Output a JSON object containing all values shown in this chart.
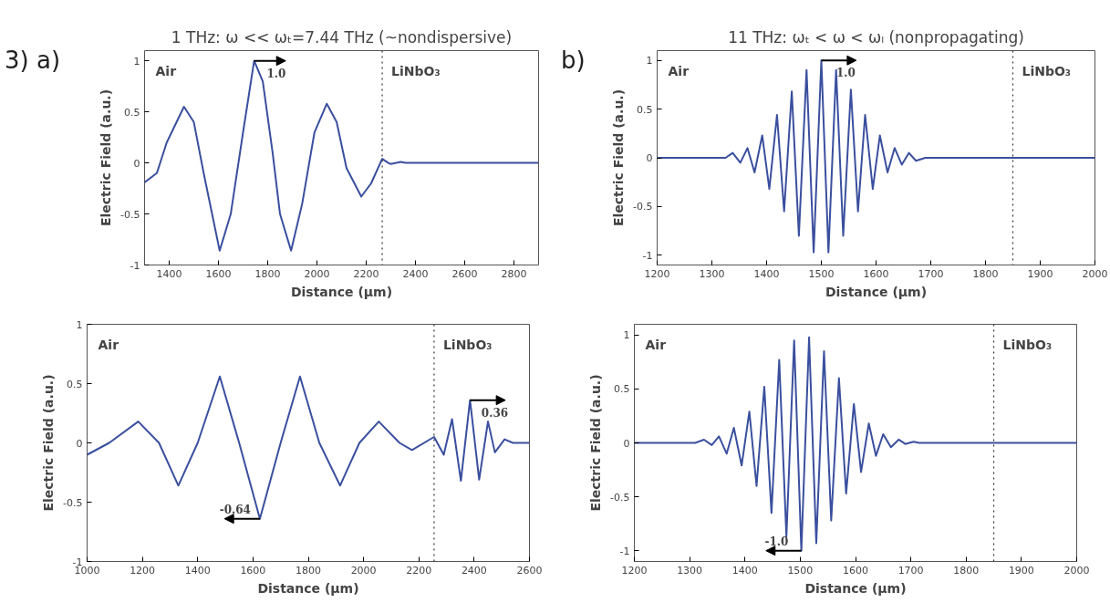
{
  "chart_data": [
    {
      "type": "line",
      "title": "1 THz: ω << ωₜ=7.44 THz (~nondispersive)",
      "xlabel": "Distance (μm)",
      "ylabel": "Electric Field (a.u.)",
      "xlim": [
        1300,
        2900
      ],
      "ylim": [
        -1,
        1.1
      ],
      "xticks": [
        1400,
        1600,
        1800,
        2000,
        2200,
        2400,
        2600,
        2800
      ],
      "yticks": [
        -1,
        -0.5,
        0,
        0.5,
        1
      ],
      "grid": false,
      "line_style": "solid",
      "series": [
        {
          "color": "#3a4f9e",
          "x": [
            1300,
            1350,
            1390,
            1460,
            1500,
            1540,
            1605,
            1650,
            1700,
            1745,
            1780,
            1820,
            1850,
            1895,
            1940,
            1990,
            2040,
            2080,
            2120,
            2180,
            2220,
            2265,
            2290,
            2300,
            2340,
            2360,
            2900
          ],
          "values": [
            -0.19,
            -0.1,
            0.2,
            0.55,
            0.4,
            -0.1,
            -0.86,
            -0.5,
            0.3,
            1.0,
            0.8,
            0.1,
            -0.5,
            -0.86,
            -0.4,
            0.3,
            0.58,
            0.4,
            -0.05,
            -0.33,
            -0.2,
            0.04,
            0.0,
            -0.01,
            0.01,
            0,
            0
          ]
        }
      ],
      "ref_lines": [
        {
          "axis": "x",
          "value": 2265,
          "color": "#333333",
          "line_style": "dotted"
        }
      ],
      "annotations": [
        "Air",
        "LiNbO₃",
        "3) a)",
        {
          "text": "1.0",
          "x": 1745,
          "y": 1.0
        }
      ]
    },
    {
      "type": "line",
      "title": "11 THz: ωₜ < ω < ωₗ (nonpropagating)",
      "xlabel": "Distance (μm)",
      "ylabel": "Electric Field (a.u.)",
      "xlim": [
        1200,
        2000
      ],
      "ylim": [
        -1.1,
        1.1
      ],
      "xticks": [
        1200,
        1300,
        1400,
        1500,
        1600,
        1700,
        1800,
        1900,
        2000
      ],
      "yticks": [
        -1,
        -0.5,
        0,
        0.5,
        1
      ],
      "grid": false,
      "line_style": "solid",
      "series": [
        {
          "color": "#3a4f9e",
          "x": [
            1200,
            1325,
            1338,
            1352,
            1365,
            1378,
            1392,
            1405,
            1419,
            1432,
            1446,
            1459,
            1473,
            1486,
            1500,
            1513,
            1527,
            1540,
            1554,
            1567,
            1580,
            1594,
            1607,
            1621,
            1634,
            1647,
            1660,
            1673,
            1690,
            2000
          ],
          "values": [
            0,
            0,
            0.05,
            -0.05,
            0.1,
            -0.15,
            0.23,
            -0.32,
            0.44,
            -0.55,
            0.68,
            -0.8,
            0.9,
            -0.97,
            1.0,
            -0.97,
            0.9,
            -0.8,
            0.7,
            -0.55,
            0.44,
            -0.32,
            0.23,
            -0.15,
            0.1,
            -0.07,
            0.05,
            -0.03,
            0,
            0
          ]
        }
      ],
      "ref_lines": [
        {
          "axis": "x",
          "value": 1850,
          "color": "#333333",
          "line_style": "dotted"
        }
      ],
      "annotations": [
        "Air",
        "LiNbO₃",
        "b)",
        {
          "text": "1.0",
          "x": 1500,
          "y": 1.0
        }
      ]
    },
    {
      "type": "line",
      "xlabel": "Distance (μm)",
      "ylabel": "Electric Field (a.u.)",
      "xlim": [
        1000,
        2600
      ],
      "ylim": [
        -1,
        1
      ],
      "xticks": [
        1000,
        1200,
        1400,
        1600,
        1800,
        2000,
        2200,
        2400,
        2600
      ],
      "yticks": [
        -1,
        -0.5,
        0,
        0.5,
        1
      ],
      "grid": false,
      "line_style": "solid",
      "series": [
        {
          "color": "#3a4f9e",
          "x": [
            1000,
            1080,
            1185,
            1260,
            1330,
            1400,
            1480,
            1550,
            1625,
            1700,
            1770,
            1840,
            1915,
            1985,
            2055,
            2130,
            2175,
            2255,
            2290,
            2320,
            2352,
            2385,
            2418,
            2450,
            2475,
            2510,
            2540,
            2600
          ],
          "values": [
            -0.1,
            0.0,
            0.18,
            0.0,
            -0.36,
            0.0,
            0.56,
            0.0,
            -0.64,
            0.0,
            0.56,
            0.0,
            -0.36,
            0.0,
            0.18,
            0.0,
            -0.06,
            0.05,
            -0.1,
            0.2,
            -0.32,
            0.36,
            -0.31,
            0.18,
            -0.08,
            0.03,
            0,
            0
          ]
        }
      ],
      "ref_lines": [
        {
          "axis": "x",
          "value": 2255,
          "color": "#333333",
          "line_style": "dotted"
        }
      ],
      "annotations": [
        "Air",
        "LiNbO₃",
        {
          "text": "-0.64",
          "x": 1625,
          "y": -0.64
        },
        {
          "text": "0.36",
          "x": 2385,
          "y": 0.36
        }
      ]
    },
    {
      "type": "line",
      "xlabel": "Distance (μm)",
      "ylabel": "Electric Field (a.u.)",
      "xlim": [
        1200,
        2000
      ],
      "ylim": [
        -1.1,
        1.1
      ],
      "xticks": [
        1200,
        1300,
        1400,
        1500,
        1600,
        1700,
        1800,
        1900,
        2000
      ],
      "yticks": [
        -1,
        -0.5,
        0,
        0.5,
        1
      ],
      "grid": false,
      "line_style": "solid",
      "series": [
        {
          "color": "#3a4f9e",
          "x": [
            1200,
            1310,
            1326,
            1340,
            1353,
            1367,
            1380,
            1394,
            1408,
            1421,
            1435,
            1448,
            1462,
            1475,
            1489,
            1502,
            1516,
            1529,
            1543,
            1556,
            1570,
            1583,
            1597,
            1610,
            1624,
            1637,
            1650,
            1664,
            1678,
            1690,
            1705,
            1715,
            2000
          ],
          "values": [
            0,
            0,
            0.03,
            -0.02,
            0.06,
            -0.1,
            0.14,
            -0.21,
            0.29,
            -0.4,
            0.52,
            -0.65,
            0.77,
            -0.87,
            0.95,
            -1.0,
            0.98,
            -0.93,
            0.85,
            -0.72,
            0.6,
            -0.47,
            0.36,
            -0.27,
            0.18,
            -0.12,
            0.08,
            -0.04,
            0.03,
            -0.01,
            0.01,
            0,
            0
          ]
        }
      ],
      "ref_lines": [
        {
          "axis": "x",
          "value": 1850,
          "color": "#333333",
          "line_style": "dotted"
        }
      ],
      "annotations": [
        "Air",
        "LiNbO₃",
        {
          "text": "-1.0",
          "x": 1502,
          "y": -1.0
        }
      ]
    }
  ]
}
